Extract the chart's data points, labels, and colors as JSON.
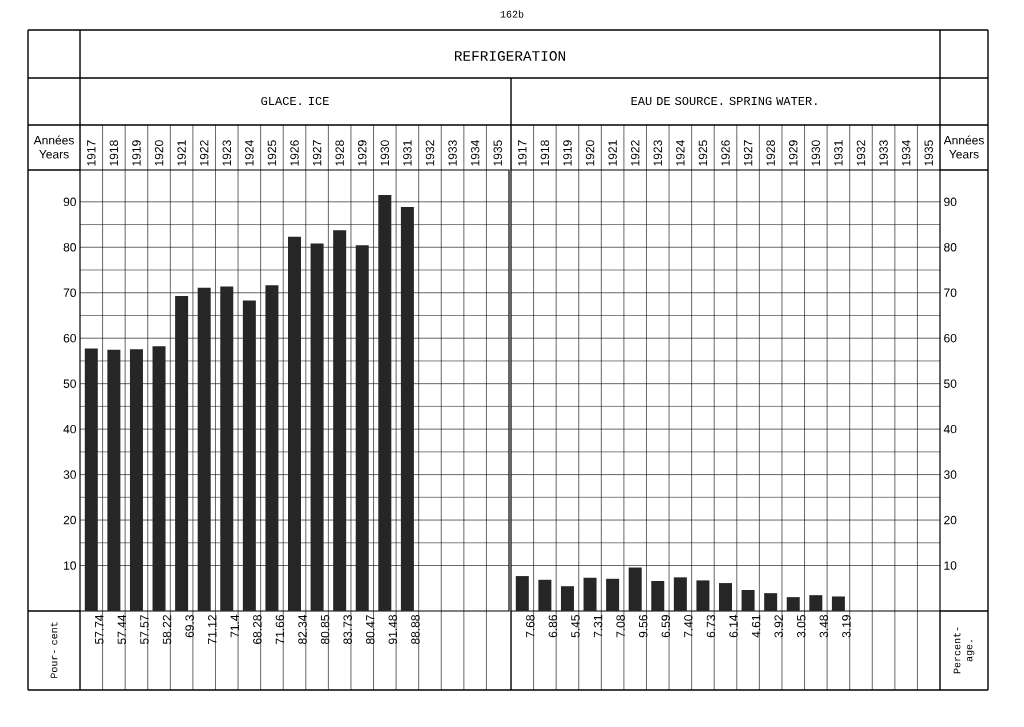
{
  "chart_data": [
    {
      "type": "bar",
      "title": "REFRIGERATION",
      "subtitle": "GLACE. ICE",
      "xlabel": "Années Years",
      "categories": [
        "1917",
        "1918",
        "1919",
        "1920",
        "1921",
        "1922",
        "1923",
        "1924",
        "1925",
        "1926",
        "1927",
        "1928",
        "1929",
        "1930",
        "1931",
        "1932",
        "1933",
        "1934",
        "1935"
      ],
      "values": [
        57.74,
        57.44,
        57.57,
        58.22,
        69.3,
        71.12,
        71.4,
        68.28,
        71.66,
        82.34,
        80.85,
        83.73,
        80.47,
        91.48,
        88.88,
        null,
        null,
        null,
        null
      ],
      "value_labels": [
        "57.74",
        "57.44",
        "57.57",
        "58.22",
        "69.3",
        "71.12",
        "71.4",
        "68.28",
        "71.66",
        "82.34",
        "80.85",
        "83.73",
        "80.47",
        "91.48",
        "88.88",
        null,
        null,
        null,
        null
      ],
      "color": "#262626",
      "ylim": [
        0,
        97
      ],
      "yticks": [
        10,
        20,
        30,
        40,
        50,
        60,
        70,
        80,
        90
      ],
      "grid": true,
      "annotations": [
        "162b",
        "Pour- cent"
      ]
    },
    {
      "type": "bar",
      "subtitle": "EAU DE SOURCE. SPRING WATER.",
      "xlabel": "Années Years",
      "categories": [
        "1917",
        "1918",
        "1919",
        "1920",
        "1921",
        "1922",
        "1923",
        "1924",
        "1925",
        "1926",
        "1927",
        "1928",
        "1929",
        "1930",
        "1931",
        "1932",
        "1933",
        "1934",
        "1935"
      ],
      "values": [
        7.68,
        6.86,
        5.45,
        7.31,
        7.08,
        9.56,
        6.59,
        7.4,
        6.73,
        6.14,
        4.61,
        3.92,
        3.05,
        3.48,
        3.19,
        null,
        null,
        null,
        null
      ],
      "value_labels": [
        "7.68",
        "6.86",
        "5.45",
        "7.31",
        "7.08",
        "9.56",
        "6.59",
        "7.40",
        "6.73",
        "6.14",
        "4.61",
        "3.92",
        "3.05",
        "3.48",
        "3.19",
        null,
        null,
        null,
        null
      ],
      "color": "#262626",
      "ylim": [
        0,
        97
      ],
      "yticks": [
        10,
        20,
        30,
        40,
        50,
        60,
        70,
        80,
        90
      ],
      "grid": true,
      "annotations": [
        "Percent- age."
      ]
    }
  ]
}
